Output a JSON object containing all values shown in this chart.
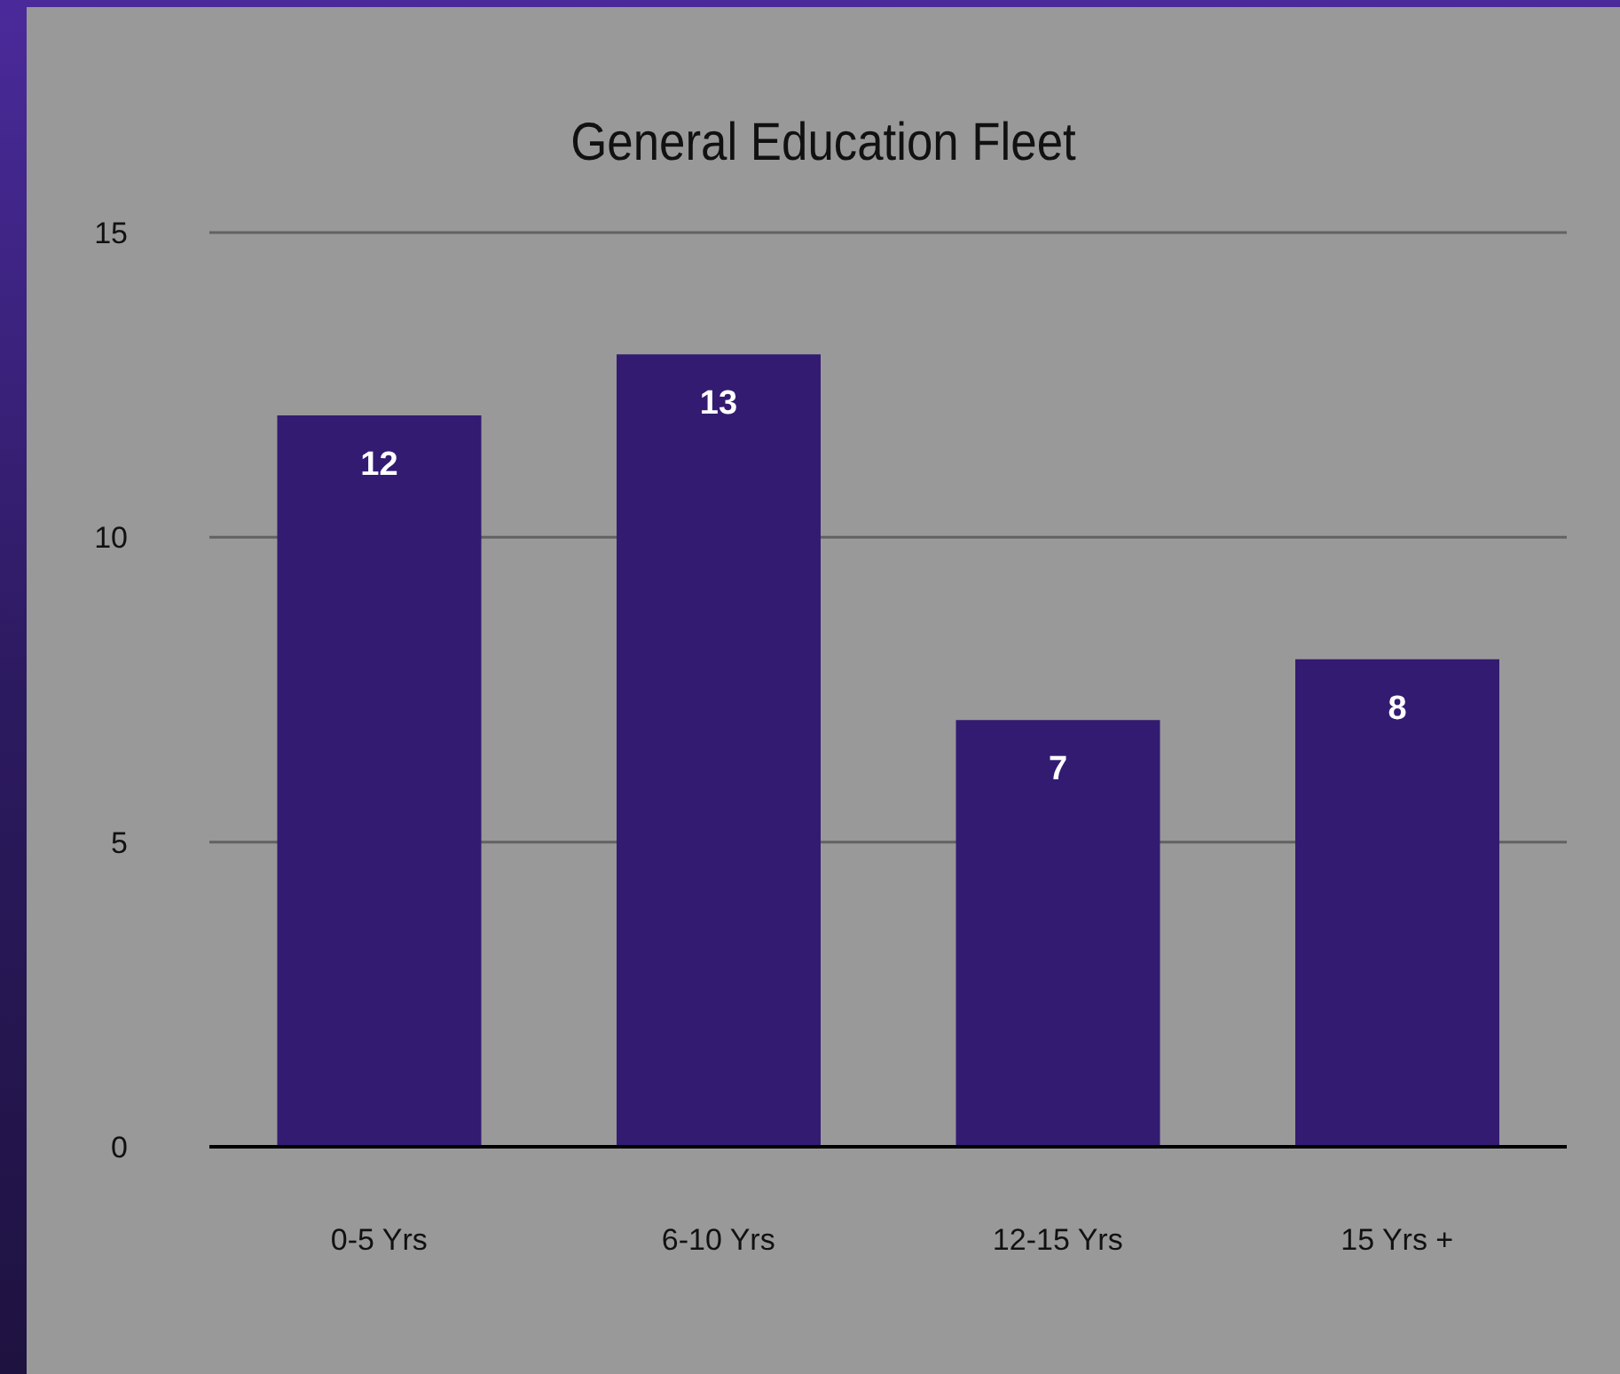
{
  "chart_data": {
    "type": "bar",
    "title": "General Education Fleet",
    "categories": [
      "0-5 Yrs",
      "6-10 Yrs",
      "12-15 Yrs",
      "15 Yrs +"
    ],
    "values": [
      12,
      13,
      7,
      8
    ],
    "color": "#331b72",
    "ylim": [
      0,
      15
    ],
    "yticks": [
      0,
      5,
      10,
      15
    ],
    "grid": "y",
    "data_labels": true
  }
}
